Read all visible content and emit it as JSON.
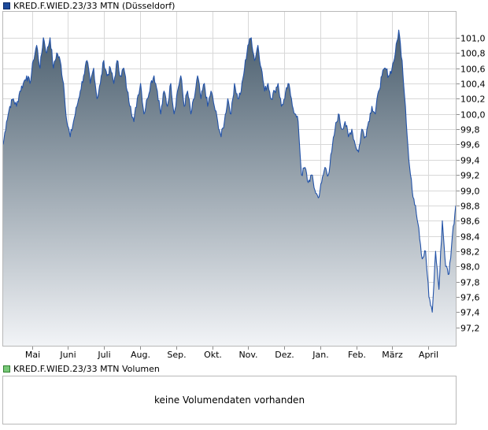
{
  "chart_data": {
    "type": "area",
    "title": "KRED.F.WIED.23/33 MTN (Düsseldorf)",
    "ylim": [
      96.95,
      101.35
    ],
    "y_ticks": [
      97.2,
      97.4,
      97.6,
      97.8,
      98.0,
      98.2,
      98.4,
      98.6,
      98.8,
      99.0,
      99.2,
      99.4,
      99.6,
      99.8,
      100.0,
      100.2,
      100.4,
      100.6,
      100.8,
      101.0
    ],
    "months": [
      "Mai",
      "Juni",
      "Juli",
      "Aug.",
      "Sep.",
      "Okt.",
      "Nov.",
      "Dez.",
      "Jan.",
      "Feb.",
      "März",
      "April"
    ],
    "grid": true,
    "colors": {
      "line": "#2353a8",
      "area_top": "#4a5e6e",
      "area_bottom": "#f2f4f7",
      "grid": "#d8d8d8"
    },
    "series": [
      {
        "name": "KRED.F.WIED.23/33 MTN",
        "values": [
          99.6,
          99.9,
          100.1,
          100.2,
          100.1,
          100.3,
          100.4,
          100.5,
          100.4,
          100.7,
          100.9,
          100.6,
          101.0,
          100.8,
          101.0,
          100.6,
          100.8,
          100.7,
          100.4,
          99.9,
          99.7,
          99.9,
          100.1,
          100.3,
          100.5,
          100.7,
          100.4,
          100.6,
          100.2,
          100.4,
          100.7,
          100.5,
          100.6,
          100.4,
          100.7,
          100.5,
          100.6,
          100.3,
          100.1,
          99.9,
          100.2,
          100.4,
          100.0,
          100.2,
          100.4,
          100.5,
          100.3,
          100.0,
          100.3,
          100.1,
          100.4,
          100.0,
          100.3,
          100.5,
          100.1,
          100.3,
          100.0,
          100.2,
          100.5,
          100.2,
          100.4,
          100.1,
          100.3,
          100.1,
          99.9,
          99.7,
          99.9,
          100.2,
          100.0,
          100.4,
          100.2,
          100.3,
          100.6,
          100.9,
          101.0,
          100.7,
          100.9,
          100.6,
          100.3,
          100.4,
          100.2,
          100.3,
          100.4,
          100.1,
          100.2,
          100.4,
          100.2,
          100.0,
          99.9,
          99.2,
          99.3,
          99.1,
          99.2,
          99.0,
          98.9,
          99.1,
          99.3,
          99.2,
          99.5,
          99.8,
          100.0,
          99.8,
          99.9,
          99.7,
          99.8,
          99.6,
          99.5,
          99.8,
          99.7,
          99.9,
          100.1,
          100.0,
          100.3,
          100.5,
          100.6,
          100.5,
          100.6,
          100.8,
          101.1,
          100.7,
          100.1,
          99.4,
          99.0,
          98.8,
          98.5,
          98.1,
          98.2,
          97.6,
          97.4,
          98.2,
          97.7,
          98.6,
          98.0,
          97.9,
          98.4,
          98.8
        ]
      }
    ]
  },
  "legends": {
    "price": "KRED.F.WIED.23/33 MTN (Düsseldorf)",
    "volume": "KRED.F.WIED.23/33 MTN Volumen"
  },
  "volume_panel": {
    "message": "keine Volumendaten vorhanden"
  }
}
